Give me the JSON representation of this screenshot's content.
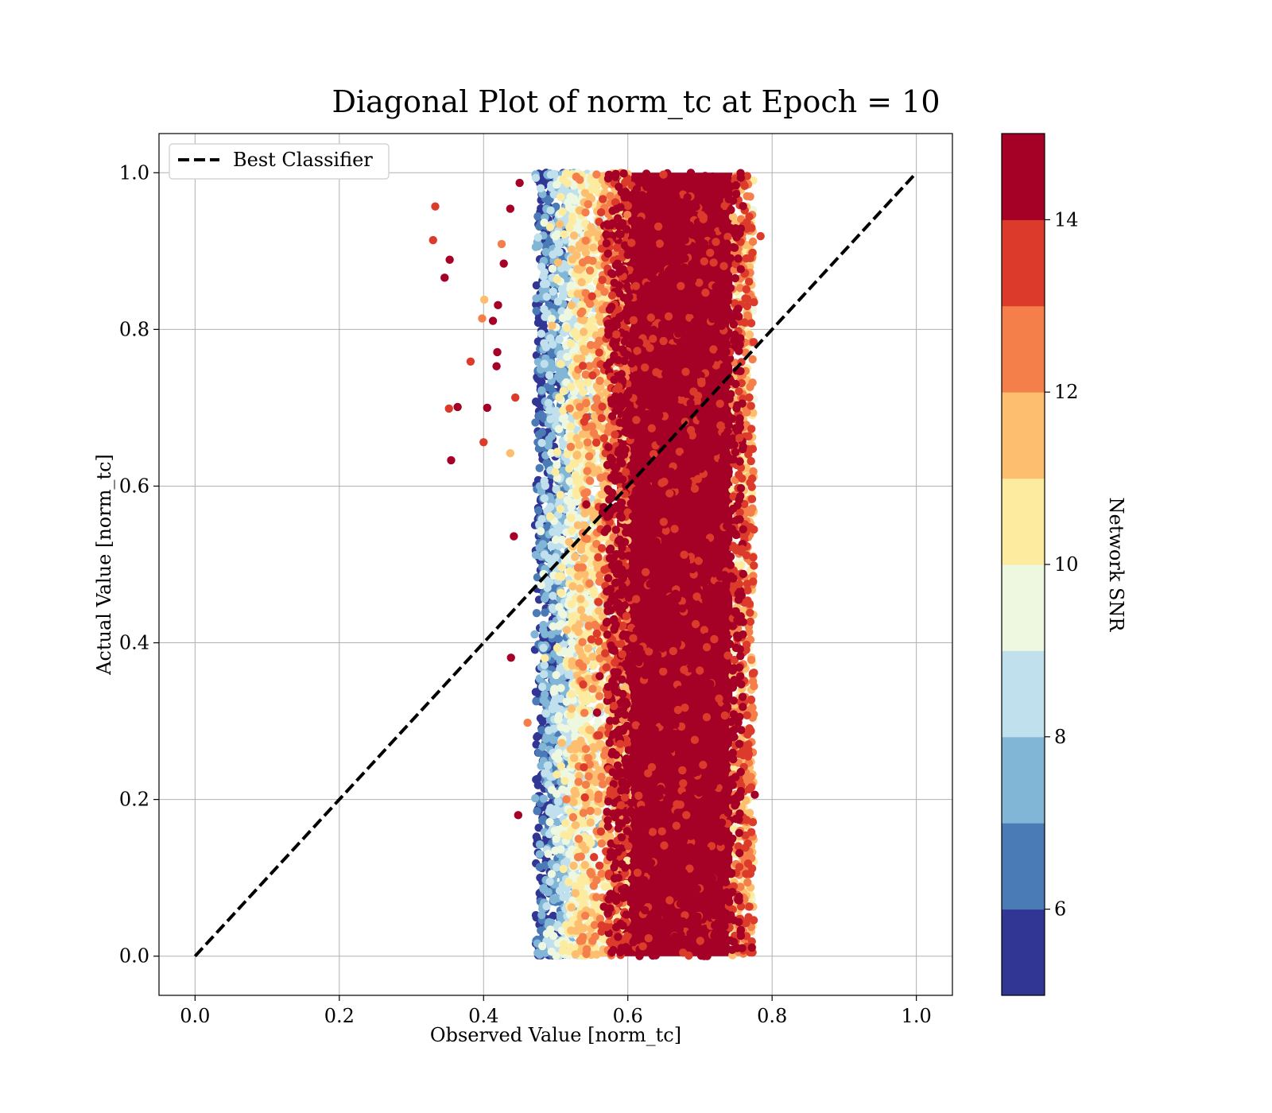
{
  "chart_data": {
    "type": "scatter",
    "title": "Diagonal Plot of norm_tc at Epoch = 10",
    "xlabel": "Observed Value [norm_tc]",
    "ylabel": "Actual Value [norm_tc]",
    "xlim": [
      -0.05,
      1.05
    ],
    "ylim": [
      -0.05,
      1.05
    ],
    "xticks": [
      "0.0",
      "0.2",
      "0.4",
      "0.6",
      "0.8",
      "1.0"
    ],
    "yticks": [
      "0.0",
      "0.2",
      "0.4",
      "0.6",
      "0.8",
      "1.0"
    ],
    "grid": true,
    "legend": {
      "placement": "top-left",
      "entries": [
        "Best Classifier"
      ]
    },
    "reference_line": {
      "name": "Best Classifier",
      "style": "dashed",
      "color": "#000000",
      "x": [
        0.0,
        1.0
      ],
      "y": [
        0.0,
        1.0
      ]
    },
    "colorbar": {
      "label": "Network SNR",
      "range": [
        5,
        15
      ],
      "ticks": [
        "6",
        "8",
        "10",
        "12",
        "14"
      ],
      "tick_values": [
        6,
        8,
        10,
        12,
        14
      ],
      "bins": [
        {
          "from": 5,
          "to": 6,
          "color": "#313695"
        },
        {
          "from": 6,
          "to": 7,
          "color": "#4a7bb7"
        },
        {
          "from": 7,
          "to": 8,
          "color": "#82b6d6"
        },
        {
          "from": 8,
          "to": 9,
          "color": "#bfe0ec"
        },
        {
          "from": 9,
          "to": 10,
          "color": "#eef7e0"
        },
        {
          "from": 10,
          "to": 11,
          "color": "#fdeba0"
        },
        {
          "from": 11,
          "to": 12,
          "color": "#fdbe6f"
        },
        {
          "from": 12,
          "to": 13,
          "color": "#f57f4b"
        },
        {
          "from": 13,
          "to": 14,
          "color": "#dc3b2b"
        },
        {
          "from": 14,
          "to": 15,
          "color": "#a50026"
        }
      ]
    },
    "point_distribution": {
      "x_range": [
        0.47,
        0.78
      ],
      "y_range": [
        0.0,
        1.0
      ],
      "dense_core_x": [
        0.58,
        0.75
      ],
      "snr_trend": "higher observed value corresponds to higher network SNR"
    },
    "outliers": [
      {
        "x": 0.333,
        "y": 0.957,
        "snr": 13.5
      },
      {
        "x": 0.33,
        "y": 0.914,
        "snr": 13.5
      },
      {
        "x": 0.353,
        "y": 0.889,
        "snr": 14.5
      },
      {
        "x": 0.346,
        "y": 0.866,
        "snr": 14.5
      },
      {
        "x": 0.355,
        "y": 0.633,
        "snr": 14.5
      },
      {
        "x": 0.352,
        "y": 0.699,
        "snr": 13.5
      },
      {
        "x": 0.364,
        "y": 0.701,
        "snr": 14.5
      },
      {
        "x": 0.382,
        "y": 0.759,
        "snr": 13.5
      },
      {
        "x": 0.398,
        "y": 0.814,
        "snr": 12.5
      },
      {
        "x": 0.401,
        "y": 0.838,
        "snr": 11.5
      },
      {
        "x": 0.413,
        "y": 0.811,
        "snr": 14.5
      },
      {
        "x": 0.42,
        "y": 0.831,
        "snr": 14.5
      },
      {
        "x": 0.419,
        "y": 0.771,
        "snr": 14.5
      },
      {
        "x": 0.418,
        "y": 0.753,
        "snr": 14.5
      },
      {
        "x": 0.405,
        "y": 0.7,
        "snr": 14.5
      },
      {
        "x": 0.4,
        "y": 0.656,
        "snr": 13.5
      },
      {
        "x": 0.428,
        "y": 0.884,
        "snr": 14.5
      },
      {
        "x": 0.425,
        "y": 0.909,
        "snr": 12.5
      },
      {
        "x": 0.437,
        "y": 0.954,
        "snr": 14.5
      },
      {
        "x": 0.45,
        "y": 0.987,
        "snr": 14.5
      },
      {
        "x": 0.444,
        "y": 0.713,
        "snr": 13.5
      },
      {
        "x": 0.437,
        "y": 0.642,
        "snr": 11.5
      },
      {
        "x": 0.442,
        "y": 0.536,
        "snr": 14.5
      },
      {
        "x": 0.438,
        "y": 0.381,
        "snr": 14.5
      },
      {
        "x": 0.448,
        "y": 0.18,
        "snr": 14.5
      },
      {
        "x": 0.461,
        "y": 0.298,
        "snr": 12.5
      },
      {
        "x": 0.784,
        "y": 0.919,
        "snr": 13.5
      },
      {
        "x": 0.776,
        "y": 0.206,
        "snr": 14.5
      },
      {
        "x": 0.772,
        "y": 0.011,
        "snr": 14.5
      }
    ]
  }
}
